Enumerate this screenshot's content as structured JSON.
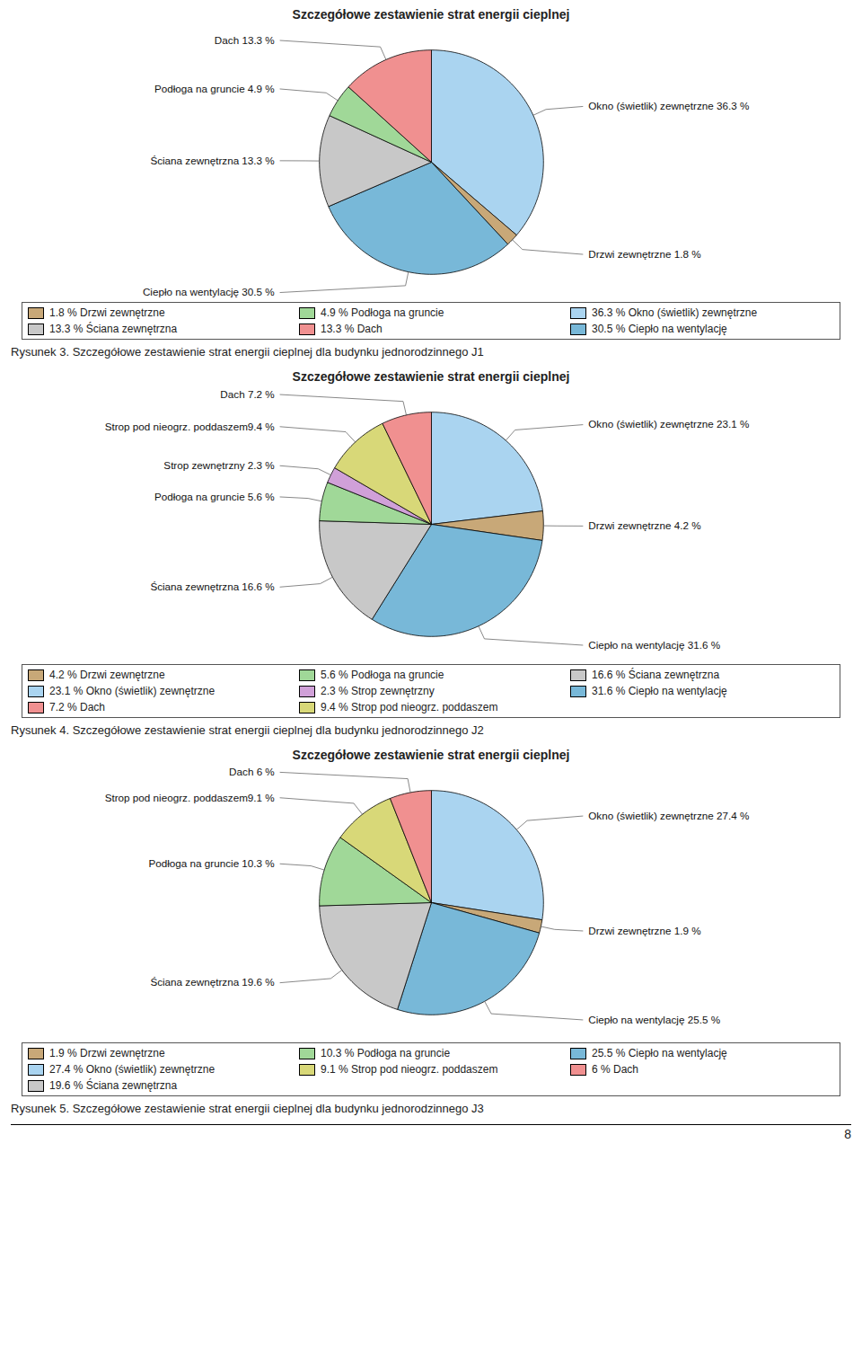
{
  "chart_data": [
    {
      "type": "pie",
      "title": "Szczegółowe zestawienie strat energii cieplnej",
      "categories": [
        "Okno (świetlik) zewnętrzne 36.3 %",
        "Drzwi zewnętrzne 1.8 %",
        "Ciepło na wentylację 30.5 %",
        "Ściana zewnętrzna 13.3 %",
        "Podłoga na gruncie 4.9 %",
        "Dach 13.3 %"
      ],
      "values": [
        36.3,
        1.8,
        30.5,
        13.3,
        4.9,
        13.3
      ],
      "colors": [
        "#aad4f0",
        "#c8a878",
        "#78b8d8",
        "#c8c8c8",
        "#a0d898",
        "#f09090"
      ],
      "legend_entries": [
        {
          "label": "1.8 % Drzwi zewnętrzne",
          "color": "#c8a878"
        },
        {
          "label": "4.9 % Podłoga na gruncie",
          "color": "#a0d898"
        },
        {
          "label": "36.3 % Okno (świetlik) zewnętrzne",
          "color": "#aad4f0"
        },
        {
          "label": "13.3 % Ściana zewnętrzna",
          "color": "#c8c8c8"
        },
        {
          "label": "13.3 % Dach",
          "color": "#f09090"
        },
        {
          "label": "30.5 % Ciepło na wentylację",
          "color": "#78b8d8"
        }
      ],
      "caption": "Rysunek 3. Szczegółowe zestawienie strat energii cieplnej dla budynku jednorodzinnego J1"
    },
    {
      "type": "pie",
      "title": "Szczegółowe zestawienie strat energii cieplnej",
      "categories": [
        "Okno (świetlik) zewnętrzne 23.1 %",
        "Drzwi zewnętrzne 4.2 %",
        "Ciepło na wentylację 31.6 %",
        "Ściana zewnętrzna 16.6 %",
        "Podłoga na gruncie 5.6 %",
        "Strop zewnętrzny 2.3 %",
        "Strop pod nieogrz. poddaszem9.4 %",
        "Dach 7.2 %"
      ],
      "values": [
        23.1,
        4.2,
        31.6,
        16.6,
        5.6,
        2.3,
        9.4,
        7.2
      ],
      "colors": [
        "#aad4f0",
        "#c8a878",
        "#78b8d8",
        "#c8c8c8",
        "#a0d898",
        "#d0a0d8",
        "#d8d878",
        "#f09090"
      ],
      "legend_entries": [
        {
          "label": "4.2 % Drzwi zewnętrzne",
          "color": "#c8a878"
        },
        {
          "label": "5.6 % Podłoga na gruncie",
          "color": "#a0d898"
        },
        {
          "label": "16.6 % Ściana zewnętrzna",
          "color": "#c8c8c8"
        },
        {
          "label": "23.1 % Okno (świetlik) zewnętrzne",
          "color": "#aad4f0"
        },
        {
          "label": "2.3 % Strop zewnętrzny",
          "color": "#d0a0d8"
        },
        {
          "label": "31.6 % Ciepło na wentylację",
          "color": "#78b8d8"
        },
        {
          "label": "7.2 % Dach",
          "color": "#f09090"
        },
        {
          "label": "9.4 % Strop pod nieogrz. poddaszem",
          "color": "#d8d878"
        }
      ],
      "caption": "Rysunek 4. Szczegółowe zestawienie strat energii cieplnej dla budynku jednorodzinnego J2"
    },
    {
      "type": "pie",
      "title": "Szczegółowe zestawienie strat energii cieplnej",
      "categories": [
        "Okno (świetlik) zewnętrzne 27.4 %",
        "Drzwi zewnętrzne 1.9 %",
        "Ciepło na wentylację 25.5 %",
        "Ściana zewnętrzna 19.6 %",
        "Podłoga na gruncie 10.3 %",
        "Strop pod nieogrz. poddaszem9.1 %",
        "Dach 6 %"
      ],
      "values": [
        27.4,
        1.9,
        25.5,
        19.6,
        10.3,
        9.1,
        6.0
      ],
      "colors": [
        "#aad4f0",
        "#c8a878",
        "#78b8d8",
        "#c8c8c8",
        "#a0d898",
        "#d8d878",
        "#f09090"
      ],
      "legend_entries": [
        {
          "label": "1.9 % Drzwi zewnętrzne",
          "color": "#c8a878"
        },
        {
          "label": "10.3 % Podłoga na gruncie",
          "color": "#a0d898"
        },
        {
          "label": "25.5 % Ciepło na wentylację",
          "color": "#78b8d8"
        },
        {
          "label": "27.4 % Okno (świetlik) zewnętrzne",
          "color": "#aad4f0"
        },
        {
          "label": "9.1 % Strop pod nieogrz. poddaszem",
          "color": "#d8d878"
        },
        {
          "label": "6 % Dach",
          "color": "#f09090"
        },
        {
          "label": "19.6 % Ściana zewnętrzna",
          "color": "#c8c8c8"
        }
      ],
      "caption": "Rysunek 5. Szczegółowe zestawienie strat energii cieplnej dla budynku jednorodzinnego J3",
      "annotations": [
        "8"
      ]
    }
  ]
}
